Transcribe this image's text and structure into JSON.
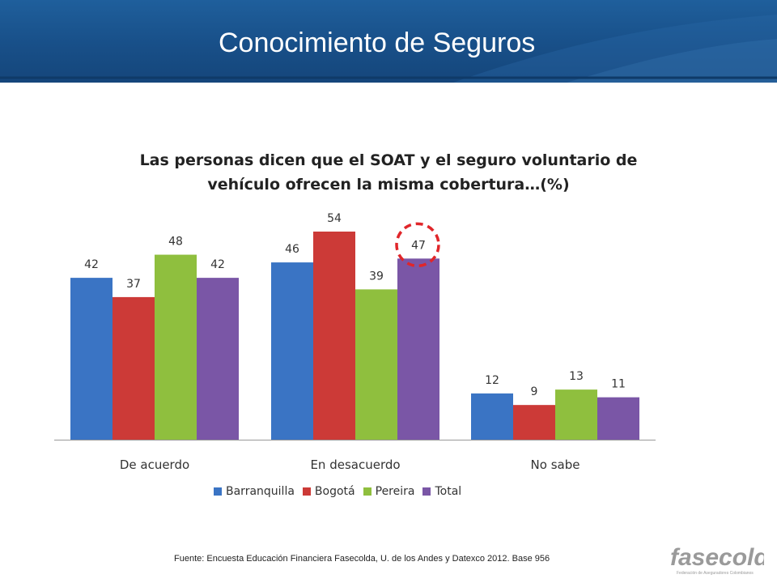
{
  "slide": {
    "title": "Conocimiento de Seguros"
  },
  "chart_data": {
    "type": "bar",
    "title": "Las personas dicen que el SOAT y el seguro voluntario de vehículo ofrecen la misma cobertura…(%)",
    "title_lines": [
      "Las personas dicen que el SOAT y el seguro voluntario de",
      "vehículo ofrecen la misma cobertura…(%)"
    ],
    "categories": [
      "De acuerdo",
      "En desacuerdo",
      "No sabe"
    ],
    "series": [
      {
        "name": "Barranquilla",
        "values": [
          42,
          46,
          12
        ],
        "color": "#3a74c4"
      },
      {
        "name": "Bogotá",
        "values": [
          37,
          54,
          9
        ],
        "color": "#cc3a37"
      },
      {
        "name": "Pereira",
        "values": [
          48,
          39,
          13
        ],
        "color": "#8fbf3e"
      },
      {
        "name": "Total",
        "values": [
          42,
          47,
          11
        ],
        "color": "#7a56a6"
      }
    ],
    "ylim": [
      0,
      54
    ],
    "grid": false,
    "legend_position": "bottom",
    "highlight": {
      "series": "Total",
      "category": "En desacuerdo",
      "style": "red dashed circle",
      "color": "#e0262a"
    }
  },
  "footer": {
    "source": "Fuente: Encuesta Educación Financiera Fasecolda, U. de los Andes y Datexco 2012. Base 956",
    "logo_text": "fasecolda",
    "logo_subtext": "Federación de Aseguradores Colombianos"
  },
  "colors": {
    "header_blue": "#184f88",
    "axis": "#999999",
    "logo_gray": "#9a9a9a"
  }
}
